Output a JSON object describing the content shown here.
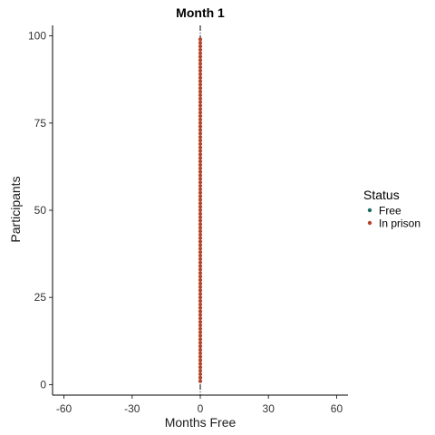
{
  "chart_data": {
    "type": "scatter",
    "title": "Month 1",
    "xlabel": "Months Free",
    "ylabel": "Participants",
    "xlim": [
      -65,
      65
    ],
    "ylim": [
      -3,
      103
    ],
    "x_ticks": [
      -60,
      -30,
      0,
      30,
      60
    ],
    "y_ticks": [
      0,
      25,
      50,
      75,
      100
    ],
    "reference_line": {
      "x": 0,
      "style": "dotdash"
    },
    "grid": false,
    "legend": {
      "title": "Status",
      "position": "right",
      "entries": [
        {
          "label": "Free",
          "color": "#1b6b63"
        },
        {
          "label": "In prison",
          "color": "#b5462a"
        }
      ]
    },
    "series": [
      {
        "name": "In prison",
        "color": "#b5462a",
        "x": 0,
        "y_from": 1,
        "y_to": 99
      }
    ]
  }
}
